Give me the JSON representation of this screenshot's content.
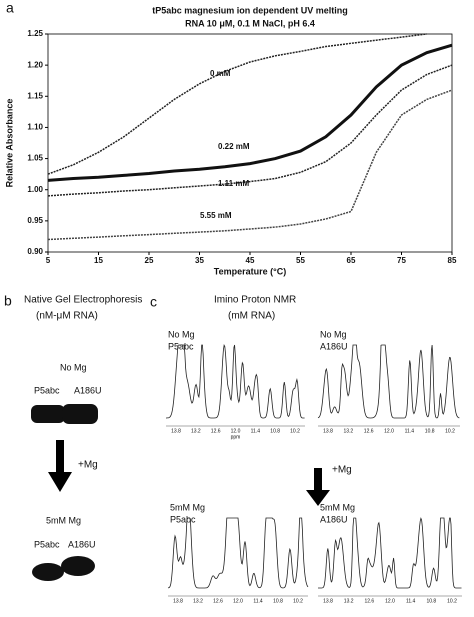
{
  "chart_data": {
    "type": "line",
    "panel_label": "a",
    "title": "tP5abc magnesium ion dependent UV melting",
    "subtitle": "RNA 10 μM, 0.1 M NaCl, pH 6.4",
    "x_label": "Temperature (°C)",
    "y_label": "Relative Absorbance",
    "x": [
      5,
      10,
      15,
      20,
      25,
      30,
      35,
      40,
      45,
      50,
      55,
      60,
      65,
      70,
      75,
      80,
      85
    ],
    "xlim": [
      5,
      85
    ],
    "xticks": [
      5,
      15,
      25,
      35,
      45,
      55,
      65,
      75,
      85
    ],
    "ylim": [
      0.9,
      1.25
    ],
    "yticks": [
      {
        "value": 0.9,
        "label": "0.90"
      },
      0.95,
      {
        "value": 1.0,
        "label": "1.00"
      },
      1.05,
      {
        "value": 1.1,
        "label": "1.10"
      },
      1.15,
      {
        "value": 1.2,
        "label": "1.20"
      },
      1.25
    ],
    "series": [
      {
        "name": "0 mM",
        "color": "#222222",
        "values": [
          1.025,
          1.04,
          1.06,
          1.085,
          1.115,
          1.145,
          1.17,
          1.19,
          1.205,
          1.215,
          1.222,
          1.23,
          1.235,
          1.24,
          1.245,
          1.25,
          null
        ]
      },
      {
        "name": "0.22 mM",
        "color": "#111111",
        "values": [
          1.015,
          1.018,
          1.02,
          1.023,
          1.026,
          1.03,
          1.033,
          1.037,
          1.042,
          1.05,
          1.062,
          1.085,
          1.12,
          1.165,
          1.2,
          1.22,
          1.232
        ]
      },
      {
        "name": "1.11 mM",
        "color": "#222222",
        "values": [
          0.99,
          0.993,
          0.995,
          0.998,
          1.0,
          1.003,
          1.006,
          1.009,
          1.013,
          1.018,
          1.028,
          1.045,
          1.075,
          1.12,
          1.16,
          1.185,
          1.2
        ]
      },
      {
        "name": "5.55 mM",
        "color": "#444444",
        "values": [
          0.92,
          0.922,
          0.924,
          0.926,
          0.928,
          0.93,
          0.932,
          0.934,
          0.937,
          0.94,
          0.945,
          0.953,
          0.965,
          1.06,
          1.12,
          1.145,
          1.16
        ]
      }
    ]
  },
  "panel_b": {
    "label": "b",
    "title": "Native Gel Electrophoresis",
    "subtitle": "(nM-μM RNA)",
    "before": {
      "condition": "No Mg",
      "lanes": [
        "P5abc",
        "A186U"
      ]
    },
    "arrow_label": "+Mg",
    "after": {
      "condition": "5mM Mg",
      "lanes": [
        "P5abc",
        "A186U"
      ]
    }
  },
  "panel_c": {
    "label": "c",
    "title": "Imino Proton NMR",
    "subtitle": "(mM RNA)",
    "arrow_label": "+Mg",
    "axis_ticks": [
      "13.8",
      "13.2",
      "12.6",
      "12.0",
      "11.4",
      "10.8",
      "10.2"
    ],
    "axis_unit": "ppm",
    "spectra": [
      {
        "condition": "No Mg",
        "sample": "P5abc"
      },
      {
        "condition": "No Mg",
        "sample": "A186U"
      },
      {
        "condition": "5mM Mg",
        "sample": "P5abc"
      },
      {
        "condition": "5mM Mg",
        "sample": "A186U"
      }
    ]
  }
}
